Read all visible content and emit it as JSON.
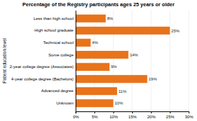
{
  "chart_data": {
    "type": "bar",
    "orientation": "horizontal",
    "title": "Percentage of the Registry participants ages 25 years or older",
    "ylabel": "Patient education level",
    "categories": [
      "Less than high school",
      "High school graduate",
      "Technical school",
      "Some college",
      "2-year college degree (Associates)",
      "4-year college degree (Bachelors)",
      "Advanced degree",
      "Unknown"
    ],
    "values": [
      8,
      25,
      4,
      14,
      9,
      19,
      11,
      10
    ],
    "value_labels": [
      "8%",
      "25%",
      "4%",
      "14%",
      "9%",
      "19%",
      "11%",
      "10%"
    ],
    "color": "#E8731A",
    "xlim": [
      0,
      30
    ],
    "xticks": [
      {
        "value": 0,
        "label": "0%"
      },
      {
        "value": 5,
        "label": "5%"
      },
      {
        "value": 10,
        "label": "10%"
      },
      {
        "value": 15,
        "label": "15%"
      },
      {
        "value": 20,
        "label": "20%"
      },
      {
        "value": 25,
        "label": "25%"
      },
      {
        "value": 30,
        "label": "30%"
      }
    ],
    "grid": true,
    "data_labels": true
  }
}
